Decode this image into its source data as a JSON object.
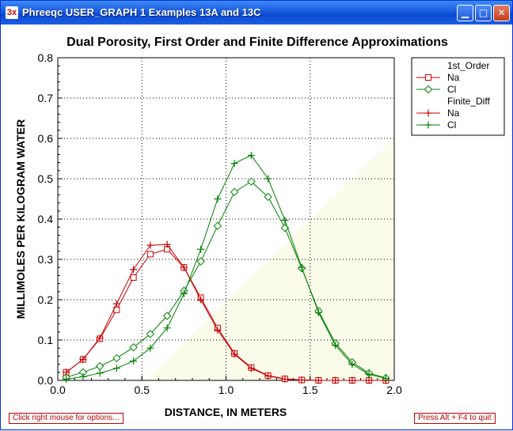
{
  "window": {
    "icon_label": "3x",
    "title": "Phreeqc USER_GRAPH 1 Examples 13A and 13C",
    "minimize_glyph": "▁",
    "maximize_glyph": "□",
    "close_glyph": "✕"
  },
  "status": {
    "left_hint": "Click right mouse for options...",
    "right_hint": "Press Alt + F4 to quit"
  },
  "colors": {
    "na": "#cc0000",
    "cl": "#008000",
    "plot_bg": "#fbfbea"
  },
  "chart_data": {
    "type": "line",
    "title": "Dual Porosity, First Order and Finite Difference Approximations",
    "xlabel": "DISTANCE, IN METERS",
    "ylabel": "MILLIMOLES PER KILOGRAM WATER",
    "xlim": [
      0,
      2.0
    ],
    "ylim": [
      0,
      0.8
    ],
    "xticks": [
      "0.0",
      "0.5",
      "1.0",
      "1.5",
      "2.0"
    ],
    "yticks": [
      "0.0",
      "0.1",
      "0.2",
      "0.3",
      "0.4",
      "0.5",
      "0.6",
      "0.7",
      "0.8"
    ],
    "grid": true,
    "legend_position": "top-right",
    "legend_groups": [
      {
        "title": "1st_Order",
        "series": [
          {
            "name": "Na",
            "color": "#cc0000",
            "marker": "square",
            "x": [
              0.05,
              0.15,
              0.25,
              0.35,
              0.45,
              0.55,
              0.65,
              0.75,
              0.85,
              0.95,
              1.05,
              1.15,
              1.25,
              1.35,
              1.45,
              1.55,
              1.65,
              1.75,
              1.85,
              1.95
            ],
            "y": [
              0.02,
              0.052,
              0.103,
              0.175,
              0.255,
              0.313,
              0.325,
              0.28,
              0.205,
              0.13,
              0.067,
              0.032,
              0.012,
              0.004,
              0.001,
              0,
              0,
              0,
              0,
              0
            ]
          },
          {
            "name": "Cl",
            "color": "#008000",
            "marker": "diamond",
            "x": [
              0.05,
              0.15,
              0.25,
              0.35,
              0.45,
              0.55,
              0.65,
              0.75,
              0.85,
              0.95,
              1.05,
              1.15,
              1.25,
              1.35,
              1.45,
              1.55,
              1.65,
              1.75,
              1.85,
              1.95
            ],
            "y": [
              0.008,
              0.02,
              0.035,
              0.055,
              0.082,
              0.115,
              0.16,
              0.222,
              0.295,
              0.383,
              0.467,
              0.493,
              0.455,
              0.378,
              0.278,
              0.172,
              0.092,
              0.045,
              0.018,
              0.006
            ]
          }
        ]
      },
      {
        "title": "Finite_Diff",
        "series": [
          {
            "name": "Na",
            "color": "#cc0000",
            "marker": "plus",
            "x": [
              0.05,
              0.15,
              0.25,
              0.35,
              0.45,
              0.55,
              0.65,
              0.75,
              0.85,
              0.95,
              1.05,
              1.15,
              1.25,
              1.35,
              1.45,
              1.55,
              1.65,
              1.75,
              1.85,
              1.95
            ],
            "y": [
              0.02,
              0.052,
              0.105,
              0.19,
              0.275,
              0.335,
              0.337,
              0.28,
              0.2,
              0.125,
              0.065,
              0.03,
              0.011,
              0.003,
              0.001,
              0,
              0,
              0,
              0,
              0
            ]
          },
          {
            "name": "Cl",
            "color": "#008000",
            "marker": "plus",
            "x": [
              0.05,
              0.15,
              0.25,
              0.35,
              0.45,
              0.55,
              0.65,
              0.75,
              0.85,
              0.95,
              1.05,
              1.15,
              1.25,
              1.35,
              1.45,
              1.55,
              1.65,
              1.75,
              1.85,
              1.95
            ],
            "y": [
              0.003,
              0.009,
              0.018,
              0.03,
              0.048,
              0.08,
              0.13,
              0.215,
              0.325,
              0.45,
              0.538,
              0.558,
              0.5,
              0.397,
              0.28,
              0.168,
              0.087,
              0.04,
              0.015,
              0.005
            ]
          }
        ]
      }
    ]
  }
}
